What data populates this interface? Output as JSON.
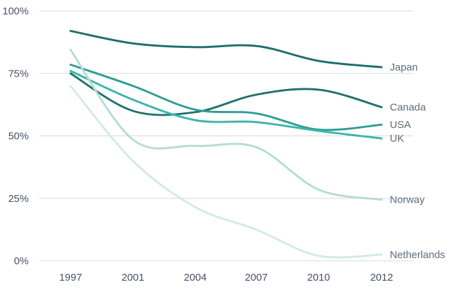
{
  "chart_data": {
    "type": "line",
    "title": "",
    "xlabel": "",
    "ylabel": "",
    "x_axis_type": "categorical",
    "categories": [
      "1997",
      "2001",
      "2004",
      "2007",
      "2010",
      "2012"
    ],
    "series": [
      {
        "name": "Japan",
        "color": "#1F6E6D",
        "values": [
          92,
          87,
          85.5,
          86,
          80,
          77.5
        ]
      },
      {
        "name": "Canada",
        "color": "#217370",
        "values": [
          75,
          60,
          59.5,
          66.5,
          68.5,
          61.5
        ]
      },
      {
        "name": "USA",
        "color": "#2F9E96",
        "values": [
          78.5,
          70,
          60.5,
          59,
          52.5,
          54.5
        ]
      },
      {
        "name": "UK",
        "color": "#3BB6AA",
        "values": [
          76,
          64.5,
          56.3,
          55.5,
          52,
          49
        ]
      },
      {
        "name": "Norway",
        "color": "#B5DCD6",
        "values": [
          84.5,
          48.5,
          46,
          45.5,
          28.5,
          24.5
        ]
      },
      {
        "name": "Netherlands",
        "color": "#D3EAE5",
        "values": [
          70,
          40,
          21.5,
          12.5,
          2,
          2.5
        ]
      }
    ],
    "y_ticks": [
      {
        "label": "100%",
        "value": 100
      },
      {
        "label": "75%",
        "value": 75
      },
      {
        "label": "50%",
        "value": 50
      },
      {
        "label": "25%",
        "value": 25
      },
      {
        "label": "0%",
        "value": 0
      }
    ],
    "ylim": [
      0,
      100
    ],
    "grid": "horizontal",
    "legend_position": "end-of-line-labels-right",
    "line_smoothing": "spline"
  },
  "colors": {
    "background": "#FFFFFF",
    "gridline": "#D9D9D9",
    "axis_text": "#44506A",
    "series_label_text": "#5D6C7E"
  }
}
